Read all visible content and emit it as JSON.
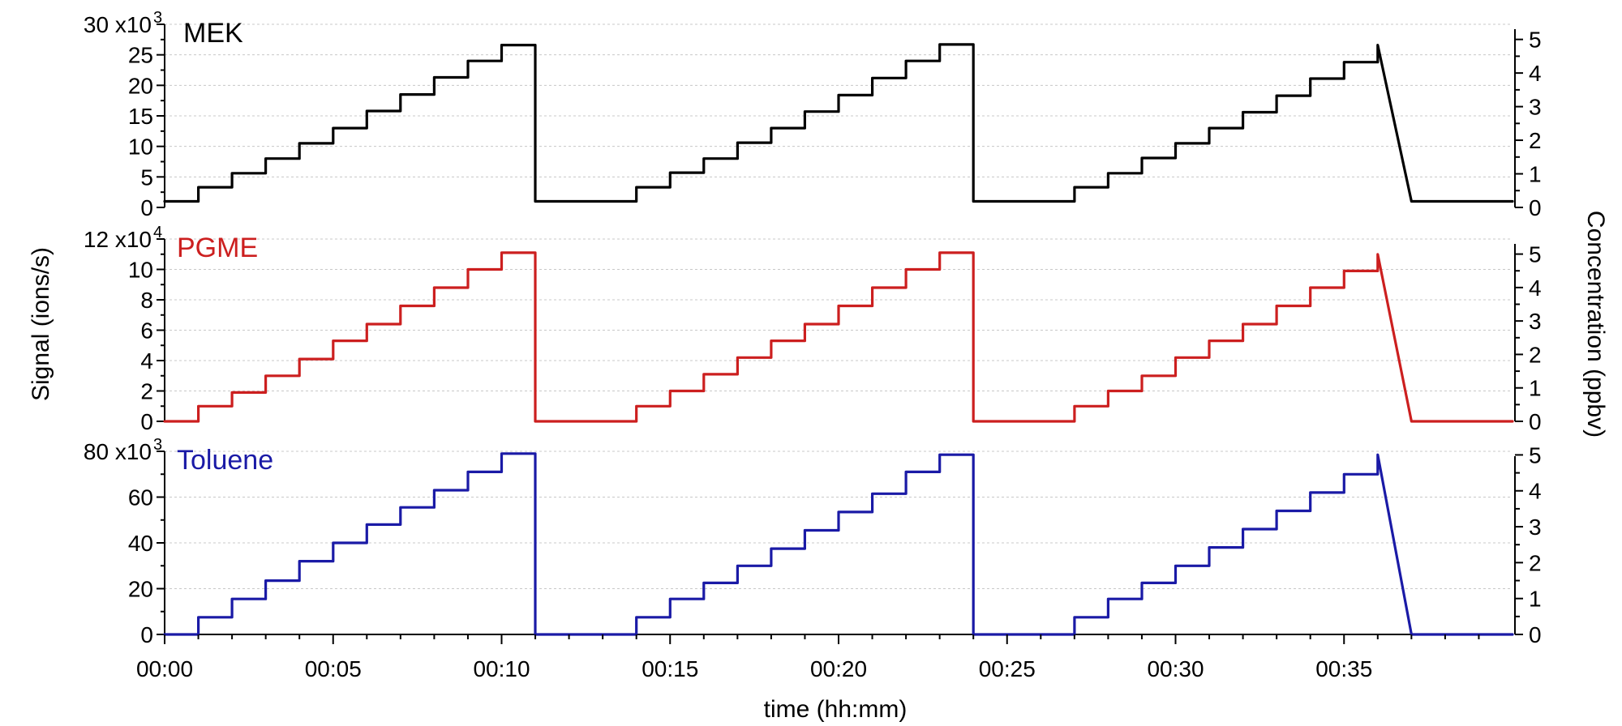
{
  "chart_data": [
    {
      "type": "line",
      "title": "MEK",
      "color": "#000000",
      "ylabel": "Signal (ions/s)",
      "y2label": "Concentration (ppbv)",
      "xlabel": "time (hh:mm)",
      "ylim": [
        0,
        30
      ],
      "y_ticks": [
        0,
        5,
        10,
        15,
        20,
        25,
        30
      ],
      "y_tick_labels": [
        "0",
        "5",
        "10",
        "15",
        "20",
        "25",
        "30 x10"
      ],
      "y_exponent": "3",
      "y2lim": [
        0,
        5.45
      ],
      "y2_ticks": [
        0,
        1,
        2,
        3,
        4,
        5
      ],
      "y2_tick_labels": [
        "0",
        "1",
        "2",
        "3",
        "4",
        "5"
      ],
      "grid": true,
      "series": [
        {
          "name": "MEK",
          "x": [
            "00:00",
            "00:01",
            "00:01",
            "00:02",
            "00:02",
            "00:03",
            "00:03",
            "00:04",
            "00:04",
            "00:05",
            "00:05",
            "00:06",
            "00:06",
            "00:07",
            "00:07",
            "00:08",
            "00:08",
            "00:09",
            "00:09",
            "00:10",
            "00:10",
            "00:11",
            "00:11",
            "00:12",
            "00:13",
            "00:14",
            "00:14",
            "00:15",
            "00:15",
            "00:16",
            "00:16",
            "00:17",
            "00:17",
            "00:18",
            "00:18",
            "00:19",
            "00:19",
            "00:20",
            "00:20",
            "00:21",
            "00:21",
            "00:22",
            "00:22",
            "00:23",
            "00:23",
            "00:24",
            "00:24",
            "00:25",
            "00:26",
            "00:27",
            "00:27",
            "00:28",
            "00:28",
            "00:29",
            "00:29",
            "00:30",
            "00:30",
            "00:31",
            "00:31",
            "00:32",
            "00:32",
            "00:33",
            "00:33",
            "00:34",
            "00:34",
            "00:35",
            "00:35",
            "00:36",
            "00:36",
            "00:37",
            "00:38",
            "00:39",
            "00:40"
          ],
          "values": [
            1.0,
            1.0,
            3.3,
            3.3,
            5.6,
            5.6,
            8.0,
            8.0,
            10.5,
            10.5,
            13.0,
            13.0,
            15.8,
            15.8,
            18.5,
            18.5,
            21.3,
            21.3,
            24.0,
            24.0,
            26.6,
            26.6,
            1.0,
            1.0,
            1.0,
            1.0,
            3.3,
            3.3,
            5.7,
            5.7,
            8.0,
            8.0,
            10.6,
            10.6,
            13.0,
            13.0,
            15.7,
            15.7,
            18.4,
            18.4,
            21.2,
            21.2,
            24.0,
            24.0,
            26.7,
            26.7,
            1.0,
            1.0,
            1.0,
            1.0,
            3.3,
            3.3,
            5.6,
            5.6,
            8.1,
            8.1,
            10.5,
            10.5,
            13.0,
            13.0,
            15.6,
            15.6,
            18.3,
            18.3,
            21.1,
            21.1,
            23.8,
            23.8,
            26.6,
            1.0,
            1.0,
            1.0,
            1.0
          ]
        }
      ]
    },
    {
      "type": "line",
      "title": "PGME",
      "color": "#cc1f1f",
      "ylabel": "Signal (ions/s)",
      "y2label": "Concentration (ppbv)",
      "xlabel": "time (hh:mm)",
      "ylim": [
        0,
        12
      ],
      "y_ticks": [
        0,
        2,
        4,
        6,
        8,
        10,
        12
      ],
      "y_tick_labels": [
        "0",
        "2",
        "4",
        "6",
        "8",
        "10",
        "12 x10"
      ],
      "y_exponent": "4",
      "y2lim": [
        0,
        5.45
      ],
      "y2_ticks": [
        0,
        1,
        2,
        3,
        4,
        5
      ],
      "y2_tick_labels": [
        "0",
        "1",
        "2",
        "3",
        "4",
        "5"
      ],
      "grid": true,
      "series": [
        {
          "name": "PGME",
          "x": [
            "00:00",
            "00:01",
            "00:01",
            "00:02",
            "00:02",
            "00:03",
            "00:03",
            "00:04",
            "00:04",
            "00:05",
            "00:05",
            "00:06",
            "00:06",
            "00:07",
            "00:07",
            "00:08",
            "00:08",
            "00:09",
            "00:09",
            "00:10",
            "00:10",
            "00:11",
            "00:11",
            "00:12",
            "00:13",
            "00:14",
            "00:14",
            "00:15",
            "00:15",
            "00:16",
            "00:16",
            "00:17",
            "00:17",
            "00:18",
            "00:18",
            "00:19",
            "00:19",
            "00:20",
            "00:20",
            "00:21",
            "00:21",
            "00:22",
            "00:22",
            "00:23",
            "00:23",
            "00:24",
            "00:24",
            "00:25",
            "00:26",
            "00:27",
            "00:27",
            "00:28",
            "00:28",
            "00:29",
            "00:29",
            "00:30",
            "00:30",
            "00:31",
            "00:31",
            "00:32",
            "00:32",
            "00:33",
            "00:33",
            "00:34",
            "00:34",
            "00:35",
            "00:35",
            "00:36",
            "00:36",
            "00:37",
            "00:38",
            "00:39",
            "00:40"
          ],
          "values": [
            0.0,
            0.0,
            1.0,
            1.0,
            1.9,
            1.9,
            3.0,
            3.0,
            4.1,
            4.1,
            5.3,
            5.3,
            6.4,
            6.4,
            7.6,
            7.6,
            8.8,
            8.8,
            10.0,
            10.0,
            11.1,
            11.1,
            0.0,
            0.0,
            0.0,
            0.0,
            1.0,
            1.0,
            2.0,
            2.0,
            3.1,
            3.1,
            4.2,
            4.2,
            5.3,
            5.3,
            6.4,
            6.4,
            7.6,
            7.6,
            8.8,
            8.8,
            10.0,
            10.0,
            11.1,
            11.1,
            0.0,
            0.0,
            0.0,
            0.0,
            1.0,
            1.0,
            2.0,
            2.0,
            3.0,
            3.0,
            4.2,
            4.2,
            5.3,
            5.3,
            6.4,
            6.4,
            7.6,
            7.6,
            8.8,
            8.8,
            9.9,
            9.9,
            11.0,
            0.0,
            0.0,
            0.0,
            0.0
          ]
        }
      ]
    },
    {
      "type": "line",
      "title": "Toluene",
      "color": "#1a1aa6",
      "ylabel": "Signal (ions/s)",
      "y2label": "Concentration (ppbv)",
      "xlabel": "time (hh:mm)",
      "ylim": [
        0,
        80
      ],
      "y_ticks": [
        0,
        20,
        40,
        60,
        80
      ],
      "y_tick_labels": [
        "0",
        "20",
        "40",
        "60",
        "80 x10"
      ],
      "y_exponent": "3",
      "y2lim": [
        0,
        5.1
      ],
      "y2_ticks": [
        0,
        1,
        2,
        3,
        4,
        5
      ],
      "y2_tick_labels": [
        "0",
        "1",
        "2",
        "3",
        "4",
        "5"
      ],
      "grid": true,
      "x_ticks": [
        "00:00",
        "00:05",
        "00:10",
        "00:15",
        "00:20",
        "00:25",
        "00:30",
        "00:35"
      ],
      "series": [
        {
          "name": "Toluene",
          "x": [
            "00:00",
            "00:01",
            "00:01",
            "00:02",
            "00:02",
            "00:03",
            "00:03",
            "00:04",
            "00:04",
            "00:05",
            "00:05",
            "00:06",
            "00:06",
            "00:07",
            "00:07",
            "00:08",
            "00:08",
            "00:09",
            "00:09",
            "00:10",
            "00:10",
            "00:11",
            "00:11",
            "00:12",
            "00:13",
            "00:14",
            "00:14",
            "00:15",
            "00:15",
            "00:16",
            "00:16",
            "00:17",
            "00:17",
            "00:18",
            "00:18",
            "00:19",
            "00:19",
            "00:20",
            "00:20",
            "00:21",
            "00:21",
            "00:22",
            "00:22",
            "00:23",
            "00:23",
            "00:24",
            "00:24",
            "00:25",
            "00:26",
            "00:27",
            "00:27",
            "00:28",
            "00:28",
            "00:29",
            "00:29",
            "00:30",
            "00:30",
            "00:31",
            "00:31",
            "00:32",
            "00:32",
            "00:33",
            "00:33",
            "00:34",
            "00:34",
            "00:35",
            "00:35",
            "00:36",
            "00:36",
            "00:37",
            "00:38",
            "00:39",
            "00:40"
          ],
          "values": [
            0.0,
            0.0,
            7.5,
            7.5,
            15.5,
            15.5,
            23.5,
            23.5,
            32.0,
            32.0,
            40.0,
            40.0,
            48.0,
            48.0,
            55.5,
            55.5,
            63.0,
            63.0,
            71.0,
            71.0,
            79.0,
            79.0,
            0.0,
            0.0,
            0.0,
            0.0,
            7.5,
            7.5,
            15.5,
            15.5,
            22.5,
            22.5,
            30.0,
            30.0,
            37.5,
            37.5,
            45.5,
            45.5,
            53.5,
            53.5,
            61.5,
            61.5,
            71.0,
            71.0,
            78.5,
            78.5,
            0.0,
            0.0,
            0.0,
            0.0,
            7.5,
            7.5,
            15.5,
            15.5,
            22.5,
            22.5,
            30.0,
            30.0,
            38.0,
            38.0,
            46.0,
            46.0,
            54.0,
            54.0,
            62.0,
            62.0,
            70.0,
            70.0,
            78.5,
            0.0,
            0.0,
            0.0,
            0.0
          ]
        }
      ]
    }
  ],
  "axes": {
    "x_title": "time (hh:mm)",
    "y_title": "Signal (ions/s)",
    "y2_title": "Concentration (ppbv)"
  }
}
